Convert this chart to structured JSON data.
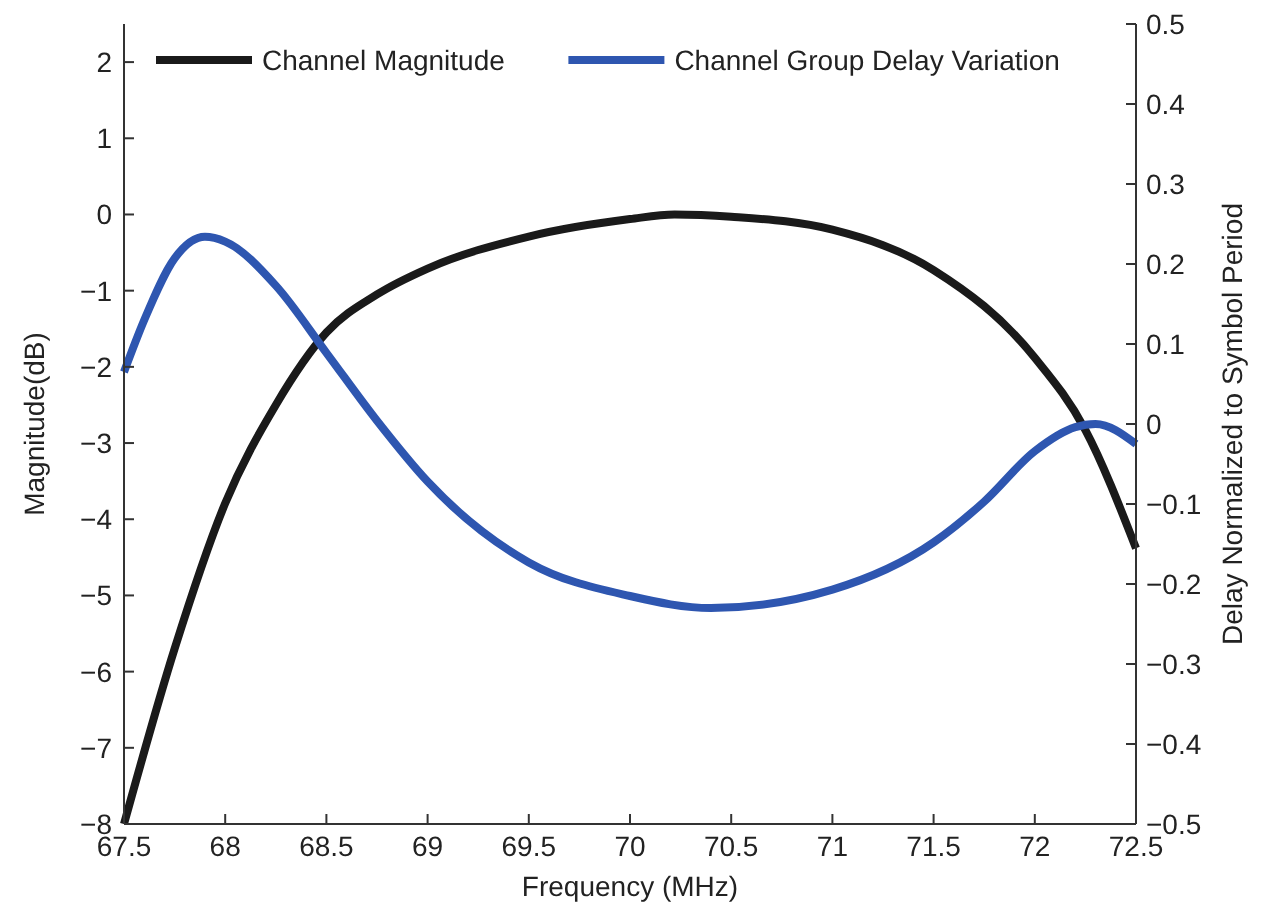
{
  "chart_data": {
    "type": "line",
    "xlabel": "Frequency (MHz)",
    "ylabel": "Magnitude(dB)",
    "y2label": "Delay Normalized to Symbol Period",
    "xlim": [
      67.5,
      72.5
    ],
    "xticks": [
      67.5,
      68,
      68.5,
      69,
      69.5,
      70,
      70.5,
      71,
      71.5,
      72,
      72.5
    ],
    "ylim": [
      -8,
      2.5
    ],
    "yticks": [
      -8,
      -7,
      -6,
      -5,
      -4,
      -3,
      -2,
      -1,
      0,
      1,
      2
    ],
    "y2lim": [
      -0.5,
      0.5
    ],
    "y2ticks": [
      -0.5,
      -0.4,
      -0.3,
      -0.2,
      -0.1,
      0,
      0.1,
      0.2,
      0.3,
      0.4,
      0.5
    ],
    "legend": "top",
    "grid": false,
    "line_style": "solid",
    "marker": "none",
    "series": [
      {
        "name": "Channel Magnitude",
        "color": "#1a1a1a",
        "x": [
          67.5,
          67.75,
          68,
          68.25,
          68.5,
          68.75,
          69,
          69.5,
          70,
          70.22,
          70.5,
          71,
          71.5,
          72,
          72.25,
          72.5
        ],
        "values": [
          -8,
          -5.7,
          -3.79,
          -2.5,
          -1.55,
          -1.05,
          -0.71,
          -0.29,
          -0.06,
          0,
          -0.03,
          -0.2,
          -0.73,
          -1.88,
          -2.83,
          -4.38
        ]
      },
      {
        "name": "Channel Group Delay Variation",
        "color": "#2e56b0",
        "axis": "y2",
        "x": [
          67.5,
          67.6,
          67.75,
          67.9,
          68,
          68.25,
          68.5,
          68.75,
          69,
          69.5,
          70,
          70.4,
          71,
          71.5,
          71.75,
          72,
          72.2,
          72.3,
          72.5
        ],
        "values": [
          0.065,
          0.13,
          0.207,
          0.234,
          0.228,
          0.173,
          0.089,
          0.004,
          -0.072,
          -0.173,
          -0.215,
          -0.23,
          -0.207,
          -0.148,
          -0.097,
          -0.034,
          -0.004,
          0,
          -0.025
        ]
      }
    ]
  }
}
